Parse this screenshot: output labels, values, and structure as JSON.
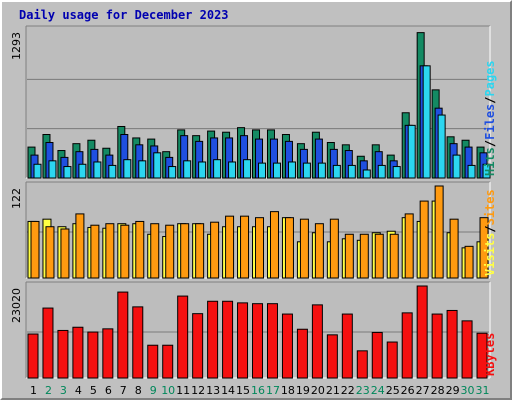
{
  "title": "Daily usage for December 2023",
  "colors": {
    "title": "#0000b0",
    "plot_bg": "#bdbdbd",
    "grid": "#7a7a7a",
    "hits": "#148a63",
    "files": "#1f4fe0",
    "pages": "#2cd6f0",
    "visits": "#ffff44",
    "sites": "#ff9a10",
    "kbytes": "#f51010",
    "day_normal": "#000000",
    "day_weekend": "#00875a"
  },
  "chart_data": [
    {
      "type": "bar",
      "panel": "hits-files-pages",
      "title": "Daily usage for December 2023",
      "ylabel": "1293",
      "ylim": [
        0,
        1293
      ],
      "grid": true,
      "side_labels": [
        "Pages",
        "Files",
        "Hits"
      ],
      "side_separator": "/",
      "categories": [
        "1",
        "2",
        "3",
        "4",
        "5",
        "6",
        "7",
        "8",
        "9",
        "10",
        "11",
        "12",
        "13",
        "14",
        "15",
        "16",
        "17",
        "18",
        "19",
        "20",
        "21",
        "22",
        "23",
        "24",
        "25",
        "26",
        "27",
        "28",
        "29",
        "30",
        "31"
      ],
      "series": [
        {
          "name": "Hits",
          "values": [
            270,
            380,
            240,
            300,
            330,
            260,
            450,
            350,
            340,
            230,
            420,
            370,
            410,
            400,
            440,
            420,
            420,
            380,
            300,
            400,
            310,
            290,
            190,
            290,
            200,
            570,
            1270,
            770,
            360,
            330,
            270
          ]
        },
        {
          "name": "Files",
          "values": [
            200,
            310,
            180,
            230,
            250,
            200,
            380,
            290,
            280,
            180,
            370,
            320,
            350,
            350,
            370,
            340,
            340,
            320,
            250,
            340,
            250,
            240,
            150,
            230,
            150,
            460,
            980,
            610,
            300,
            270,
            220
          ]
        },
        {
          "name": "Pages",
          "values": [
            120,
            150,
            100,
            120,
            140,
            110,
            160,
            150,
            220,
            100,
            150,
            140,
            160,
            140,
            160,
            130,
            130,
            140,
            130,
            130,
            110,
            110,
            70,
            110,
            100,
            460,
            980,
            550,
            200,
            110,
            120
          ]
        }
      ]
    },
    {
      "type": "bar",
      "panel": "visits-sites",
      "ylabel": "122",
      "ylim": [
        0,
        122
      ],
      "grid": true,
      "side_labels": [
        "Sites",
        "Visits"
      ],
      "side_separator": "/",
      "categories": [
        "1",
        "2",
        "3",
        "4",
        "5",
        "6",
        "7",
        "8",
        "9",
        "10",
        "11",
        "12",
        "13",
        "14",
        "15",
        "16",
        "17",
        "18",
        "19",
        "20",
        "21",
        "22",
        "23",
        "24",
        "25",
        "26",
        "27",
        "28",
        "29",
        "30",
        "31"
      ],
      "series": [
        {
          "name": "Visits",
          "values": [
            75,
            78,
            68,
            72,
            67,
            66,
            72,
            72,
            58,
            55,
            72,
            72,
            58,
            68,
            68,
            68,
            68,
            80,
            48,
            60,
            48,
            52,
            50,
            60,
            62,
            80,
            75,
            102,
            60,
            40,
            48
          ]
        },
        {
          "name": "Sites",
          "values": [
            75,
            68,
            65,
            85,
            70,
            72,
            70,
            75,
            72,
            70,
            72,
            72,
            74,
            82,
            82,
            80,
            88,
            80,
            78,
            72,
            78,
            58,
            58,
            58,
            58,
            85,
            102,
            122,
            78,
            42,
            80
          ]
        }
      ]
    },
    {
      "type": "bar",
      "panel": "kbytes",
      "ylabel": "23020",
      "ylim": [
        0,
        23020
      ],
      "grid": true,
      "side_labels": [
        "KBytes"
      ],
      "categories": [
        "1",
        "2",
        "3",
        "4",
        "5",
        "6",
        "7",
        "8",
        "9",
        "10",
        "11",
        "12",
        "13",
        "14",
        "15",
        "16",
        "17",
        "18",
        "19",
        "20",
        "21",
        "22",
        "23",
        "24",
        "25",
        "26",
        "27",
        "28",
        "29",
        "30",
        "31"
      ],
      "series": [
        {
          "name": "KBytes",
          "values": [
            11000,
            17500,
            11900,
            12700,
            11500,
            12300,
            21500,
            17800,
            8200,
            8200,
            20500,
            16100,
            19200,
            19200,
            18800,
            18600,
            18600,
            16000,
            12200,
            18300,
            10800,
            16000,
            6800,
            11400,
            9000,
            16300,
            23020,
            16000,
            16900,
            14300,
            11200
          ]
        }
      ]
    }
  ],
  "weekend_days": [
    "2",
    "3",
    "9",
    "10",
    "16",
    "17",
    "23",
    "24",
    "30",
    "31"
  ]
}
